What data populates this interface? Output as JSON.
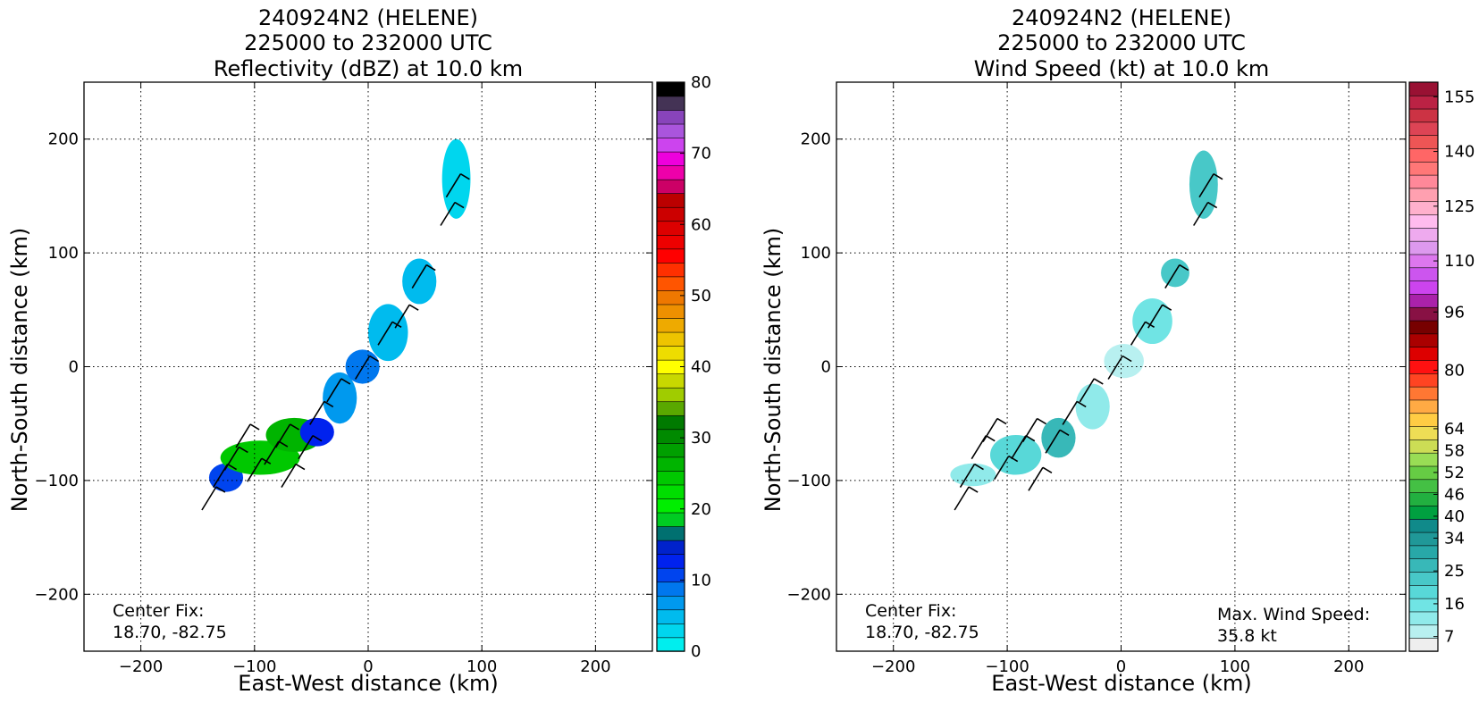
{
  "chart_data": [
    {
      "type": "heatmap",
      "name": "reflectivity",
      "title_lines": [
        "240924N2 (HELENE)",
        "225000 to 232000 UTC",
        "Reflectivity (dBZ) at 10.0 km"
      ],
      "xlabel": "East-West distance (km)",
      "ylabel": "North-South distance (km)",
      "xlim": [
        -250,
        250
      ],
      "ylim": [
        -250,
        250
      ],
      "xticks": [
        -200,
        -100,
        0,
        100,
        200
      ],
      "yticks": [
        -200,
        -100,
        0,
        100,
        200
      ],
      "xtick_labels": [
        "−200",
        "−100",
        "0",
        "100",
        "200"
      ],
      "ytick_labels": [
        "−200",
        "−100",
        "0",
        "100",
        "200"
      ],
      "grid": true,
      "annotations": [
        {
          "lines": [
            "Center Fix:",
            "18.70, -82.75"
          ],
          "position": "bottom-left"
        }
      ],
      "colorbar": {
        "range": [
          0,
          80
        ],
        "colors": [
          "#00eeee",
          "#00d6ee",
          "#00bbee",
          "#0099ee",
          "#0077ee",
          "#0044ee",
          "#0022ee",
          "#0022cc",
          "#007070",
          "#00cc22",
          "#00ee00",
          "#00de00",
          "#00c800",
          "#00b400",
          "#00a000",
          "#008a00",
          "#007a00",
          "#5aa800",
          "#a0cc00",
          "#c8d800",
          "#ffff00",
          "#eedd00",
          "#eec400",
          "#eeaa00",
          "#ee9000",
          "#ee7800",
          "#ff5500",
          "#ff3000",
          "#ff0000",
          "#ee0000",
          "#dd0000",
          "#cc0000",
          "#bb0000",
          "#cc0066",
          "#ee00aa",
          "#ee00dd",
          "#cc44ee",
          "#aa55dd",
          "#8844bb",
          "#443355",
          "#000000"
        ],
        "tick_values": [
          0,
          10,
          20,
          30,
          40,
          50,
          60,
          70,
          80
        ],
        "tick_labels": [
          "0",
          "10",
          "20",
          "30",
          "40",
          "50",
          "60",
          "70",
          "80"
        ]
      },
      "field_blobs": [
        {
          "x": [
            -140,
            -110
          ],
          "y": [
            -110,
            -85
          ],
          "value": 10
        },
        {
          "x": [
            -130,
            -60
          ],
          "y": [
            -95,
            -65
          ],
          "value": 24
        },
        {
          "x": [
            -90,
            -40
          ],
          "y": [
            -75,
            -45
          ],
          "value": 26
        },
        {
          "x": [
            -60,
            -30
          ],
          "y": [
            -70,
            -45
          ],
          "value": 12
        },
        {
          "x": [
            -40,
            -10
          ],
          "y": [
            -50,
            -5
          ],
          "value": 6
        },
        {
          "x": [
            -20,
            10
          ],
          "y": [
            -15,
            15
          ],
          "value": 8
        },
        {
          "x": [
            0,
            35
          ],
          "y": [
            5,
            55
          ],
          "value": 5
        },
        {
          "x": [
            30,
            60
          ],
          "y": [
            55,
            95
          ],
          "value": 4
        },
        {
          "x": [
            65,
            90
          ],
          "y": [
            130,
            200
          ],
          "value": 2
        }
      ],
      "wind_barbs": [
        {
          "x": -140,
          "y": -115
        },
        {
          "x": -130,
          "y": -95
        },
        {
          "x": -120,
          "y": -80
        },
        {
          "x": -110,
          "y": -60
        },
        {
          "x": -100,
          "y": -90
        },
        {
          "x": -85,
          "y": -75
        },
        {
          "x": -75,
          "y": -60
        },
        {
          "x": -70,
          "y": -95
        },
        {
          "x": -55,
          "y": -70
        },
        {
          "x": -45,
          "y": -40
        },
        {
          "x": -30,
          "y": -20
        },
        {
          "x": -5,
          "y": 0
        },
        {
          "x": 15,
          "y": 30
        },
        {
          "x": 30,
          "y": 45
        },
        {
          "x": 45,
          "y": 80
        },
        {
          "x": 70,
          "y": 135
        },
        {
          "x": 75,
          "y": 160
        }
      ]
    },
    {
      "type": "heatmap",
      "name": "wind-speed",
      "title_lines": [
        "240924N2 (HELENE)",
        "225000 to 232000 UTC",
        "Wind Speed (kt) at 10.0 km"
      ],
      "xlabel": "East-West distance (km)",
      "ylabel": "North-South distance (km)",
      "xlim": [
        -250,
        250
      ],
      "ylim": [
        -250,
        250
      ],
      "xticks": [
        -200,
        -100,
        0,
        100,
        200
      ],
      "yticks": [
        -200,
        -100,
        0,
        100,
        200
      ],
      "xtick_labels": [
        "−200",
        "−100",
        "0",
        "100",
        "200"
      ],
      "ytick_labels": [
        "−200",
        "−100",
        "0",
        "100",
        "200"
      ],
      "grid": true,
      "annotations": [
        {
          "lines": [
            "Center Fix:",
            "18.70, -82.75"
          ],
          "position": "bottom-left"
        },
        {
          "lines": [
            "Max. Wind Speed:",
            "35.8 kt"
          ],
          "position": "bottom-right"
        }
      ],
      "colorbar": {
        "range": [
          3,
          159
        ],
        "colors": [
          "#eeeeee",
          "#b8f0f0",
          "#90eaea",
          "#70e4e4",
          "#58d8d8",
          "#48c8c8",
          "#38b8b8",
          "#28a8a8",
          "#209898",
          "#108a8a",
          "#00a040",
          "#22b040",
          "#44c044",
          "#66cc44",
          "#99dd55",
          "#ccdd55",
          "#eedd55",
          "#ffcc44",
          "#ffaa44",
          "#ff7733",
          "#ff4422",
          "#ff1111",
          "#dd0000",
          "#aa0000",
          "#770000",
          "#881144",
          "#aa22aa",
          "#cc44ee",
          "#cc55ee",
          "#dd77ee",
          "#dd99ee",
          "#eeaaee",
          "#ffbbee",
          "#ffb0cc",
          "#ffa0b0",
          "#ff8899",
          "#ff7777",
          "#ff6666",
          "#ee5555",
          "#dd4455",
          "#cc3344",
          "#bb2244",
          "#991133"
        ],
        "tick_values": [
          7,
          16,
          25,
          34,
          40,
          46,
          52,
          58,
          64,
          80,
          96,
          110,
          125,
          140,
          155
        ],
        "tick_labels": [
          "7",
          "16",
          "25",
          "34",
          "40",
          "46",
          "52",
          "58",
          "64",
          "80",
          "96",
          "110",
          "125",
          "140",
          "155"
        ]
      },
      "field_blobs": [
        {
          "x": [
            -150,
            -110
          ],
          "y": [
            -105,
            -85
          ],
          "value": 12
        },
        {
          "x": [
            -115,
            -70
          ],
          "y": [
            -95,
            -60
          ],
          "value": 20
        },
        {
          "x": [
            -70,
            -40
          ],
          "y": [
            -80,
            -45
          ],
          "value": 26
        },
        {
          "x": [
            -40,
            -10
          ],
          "y": [
            -55,
            -15
          ],
          "value": 11
        },
        {
          "x": [
            -15,
            20
          ],
          "y": [
            -10,
            20
          ],
          "value": 7
        },
        {
          "x": [
            10,
            45
          ],
          "y": [
            20,
            60
          ],
          "value": 14
        },
        {
          "x": [
            35,
            60
          ],
          "y": [
            70,
            95
          ],
          "value": 22
        },
        {
          "x": [
            60,
            85
          ],
          "y": [
            130,
            190
          ],
          "value": 24
        }
      ],
      "wind_barbs": [
        {
          "x": -140,
          "y": -115
        },
        {
          "x": -135,
          "y": -95
        },
        {
          "x": -125,
          "y": -70
        },
        {
          "x": -115,
          "y": -55
        },
        {
          "x": -105,
          "y": -88
        },
        {
          "x": -90,
          "y": -70
        },
        {
          "x": -80,
          "y": -55
        },
        {
          "x": -75,
          "y": -98
        },
        {
          "x": -60,
          "y": -65
        },
        {
          "x": -45,
          "y": -40
        },
        {
          "x": -30,
          "y": -20
        },
        {
          "x": -5,
          "y": 0
        },
        {
          "x": 15,
          "y": 30
        },
        {
          "x": 30,
          "y": 45
        },
        {
          "x": 45,
          "y": 80
        },
        {
          "x": 70,
          "y": 135
        },
        {
          "x": 75,
          "y": 160
        }
      ]
    }
  ]
}
